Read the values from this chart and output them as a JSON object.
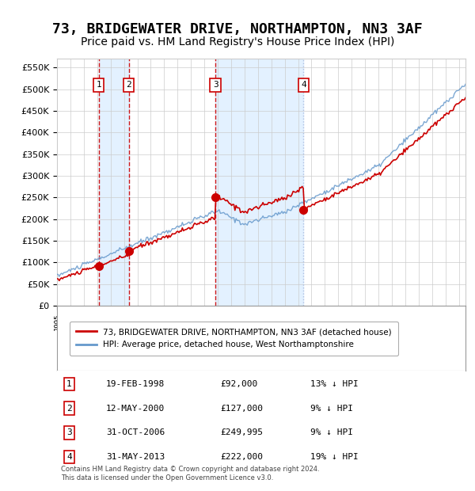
{
  "title": "73, BRIDGEWATER DRIVE, NORTHAMPTON, NN3 3AF",
  "subtitle": "Price paid vs. HM Land Registry's House Price Index (HPI)",
  "title_fontsize": 13,
  "subtitle_fontsize": 10,
  "ylabel_ticks": [
    "£0",
    "£50K",
    "£100K",
    "£150K",
    "£200K",
    "£250K",
    "£300K",
    "£350K",
    "£400K",
    "£450K",
    "£500K",
    "£550K"
  ],
  "ytick_values": [
    0,
    50000,
    100000,
    150000,
    200000,
    250000,
    300000,
    350000,
    400000,
    450000,
    500000,
    550000
  ],
  "ylim": [
    0,
    570000
  ],
  "xlim_start": 1995.0,
  "xlim_end": 2025.5,
  "sale_dates": [
    1998.12,
    2000.36,
    2006.83,
    2013.41
  ],
  "sale_prices": [
    92000,
    127000,
    249995,
    222000
  ],
  "sale_labels": [
    "1",
    "2",
    "3",
    "4"
  ],
  "red_line_color": "#cc0000",
  "blue_line_color": "#6699cc",
  "dashed_red_color": "#cc0000",
  "dashed_blue_color": "#aabbdd",
  "bg_shade_color": "#ddeeff",
  "legend_entries": [
    "73, BRIDGEWATER DRIVE, NORTHAMPTON, NN3 3AF (detached house)",
    "HPI: Average price, detached house, West Northamptonshire"
  ],
  "table_rows": [
    [
      "1",
      "19-FEB-1998",
      "£92,000",
      "13% ↓ HPI"
    ],
    [
      "2",
      "12-MAY-2000",
      "£127,000",
      "9% ↓ HPI"
    ],
    [
      "3",
      "31-OCT-2006",
      "£249,995",
      "9% ↓ HPI"
    ],
    [
      "4",
      "31-MAY-2013",
      "£222,000",
      "19% ↓ HPI"
    ]
  ],
  "footnote": "Contains HM Land Registry data © Crown copyright and database right 2024.\nThis data is licensed under the Open Government Licence v3.0.",
  "background_color": "#ffffff",
  "grid_color": "#cccccc"
}
